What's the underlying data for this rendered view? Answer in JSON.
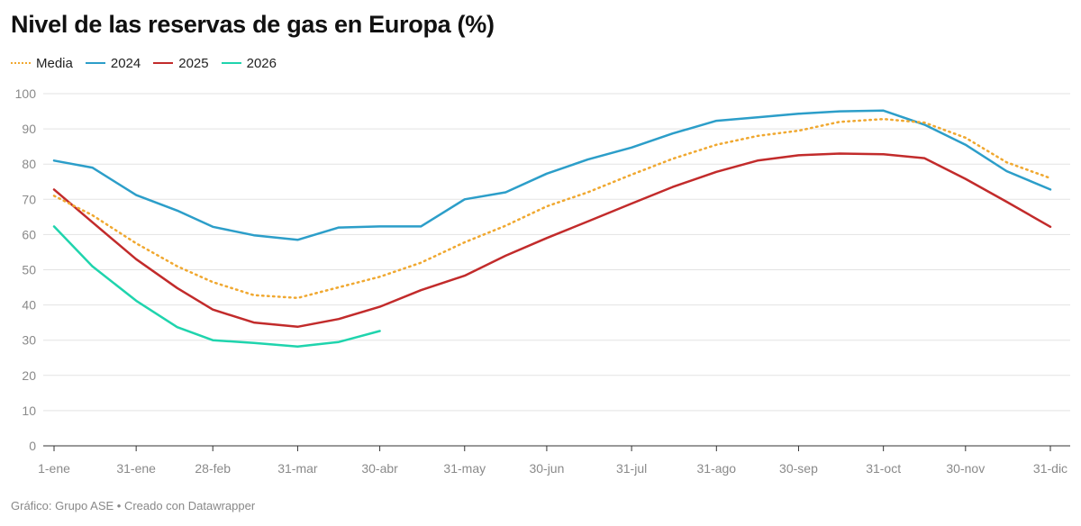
{
  "title": "Nivel de las reservas de gas en Europa (%)",
  "footer": "Gráfico: Grupo ASE • Creado con Datawrapper",
  "chart_data": {
    "type": "line",
    "title": "Nivel de las reservas de gas en Europa (%)",
    "xlabel": "",
    "ylabel": "",
    "ylim": [
      0,
      100
    ],
    "y_ticks": [
      0,
      10,
      20,
      30,
      40,
      50,
      60,
      70,
      80,
      90,
      100
    ],
    "x_ticks": [
      "1-ene",
      "31-ene",
      "28-feb",
      "31-mar",
      "30-abr",
      "31-may",
      "30-jun",
      "31-jul",
      "31-ago",
      "30-sep",
      "31-oct",
      "30-nov",
      "31-dic"
    ],
    "grid": true,
    "legend_position": "top-left",
    "series": [
      {
        "name": "Media",
        "color": "#f0a830",
        "style": "dotted",
        "x": [
          "1-ene",
          "15-ene",
          "31-ene",
          "15-feb",
          "28-feb",
          "15-mar",
          "31-mar",
          "15-abr",
          "30-abr",
          "15-may",
          "31-may",
          "15-jun",
          "30-jun",
          "15-jul",
          "31-jul",
          "15-ago",
          "31-ago",
          "15-sep",
          "30-sep",
          "15-oct",
          "31-oct",
          "15-nov",
          "30-nov",
          "15-dic",
          "31-dic"
        ],
        "values": [
          71,
          65.5,
          57.5,
          51,
          46.5,
          42.8,
          42,
          45,
          48,
          52,
          57.8,
          62.5,
          68,
          72,
          77,
          81.5,
          85.5,
          88,
          89.5,
          92,
          92.8,
          91.8,
          87.5,
          80.5,
          76
        ]
      },
      {
        "name": "2024",
        "color": "#2c9ec9",
        "style": "solid",
        "x": [
          "1-ene",
          "15-ene",
          "31-ene",
          "15-feb",
          "28-feb",
          "15-mar",
          "31-mar",
          "15-abr",
          "30-abr",
          "15-may",
          "31-may",
          "15-jun",
          "30-jun",
          "15-jul",
          "31-jul",
          "15-ago",
          "31-ago",
          "15-sep",
          "30-sep",
          "15-oct",
          "31-oct",
          "15-nov",
          "30-nov",
          "15-dic",
          "31-dic"
        ],
        "values": [
          81,
          79,
          71.2,
          66.8,
          62.2,
          59.8,
          58.5,
          62,
          62.3,
          62.3,
          70,
          72,
          77.3,
          81.3,
          84.7,
          88.7,
          92.3,
          93.3,
          94.3,
          95,
          95.2,
          91.2,
          85.5,
          78,
          72.8
        ]
      },
      {
        "name": "2025",
        "color": "#c22b2b",
        "style": "solid",
        "x": [
          "1-ene",
          "15-ene",
          "31-ene",
          "15-feb",
          "28-feb",
          "15-mar",
          "31-mar",
          "15-abr",
          "30-abr",
          "15-may",
          "31-may",
          "15-jun",
          "30-jun",
          "15-jul",
          "31-jul",
          "15-ago",
          "31-ago",
          "15-sep",
          "30-sep",
          "15-oct",
          "31-oct",
          "15-nov",
          "30-nov",
          "15-dic",
          "31-dic"
        ],
        "values": [
          72.8,
          63.5,
          53,
          44.8,
          38.7,
          35,
          33.8,
          36,
          39.5,
          44.2,
          48.3,
          54,
          59,
          63.7,
          68.8,
          73.5,
          77.8,
          81,
          82.5,
          83,
          82.8,
          81.7,
          75.8,
          69.3,
          62.2
        ]
      },
      {
        "name": "2026",
        "color": "#1fd4ad",
        "style": "solid",
        "x": [
          "1-ene",
          "15-ene",
          "31-ene",
          "15-feb",
          "28-feb",
          "15-mar",
          "31-mar",
          "15-abr",
          "30-abr"
        ],
        "values": [
          62.3,
          51,
          41.2,
          33.7,
          30,
          29.2,
          28.2,
          29.5,
          32.6
        ]
      }
    ]
  }
}
